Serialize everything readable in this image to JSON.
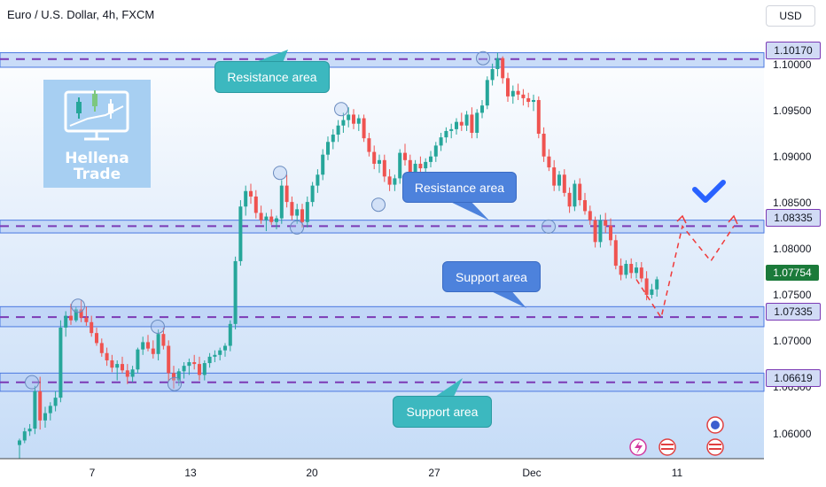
{
  "header": {
    "title": "Euro / U.S. Dollar, 4h, FXCM",
    "currency": "USD"
  },
  "logo": {
    "line1": "Hellena",
    "line2": "Trade"
  },
  "chart_data": {
    "type": "candlestick",
    "y_range": [
      1.0578,
      1.1043
    ],
    "y_ticks": [
      "1.10000",
      "1.09500",
      "1.09000",
      "1.08500",
      "1.08000",
      "1.07500",
      "1.07000",
      "1.06500",
      "1.06000"
    ],
    "x_ticks": [
      "7",
      "13",
      "20",
      "27",
      "Dec",
      "11"
    ],
    "levels": [
      {
        "value": "1.10170",
        "band": [
          1.1008,
          1.1024
        ]
      },
      {
        "value": "1.08335",
        "band": [
          1.0826,
          1.084
        ]
      },
      {
        "value": "1.07335",
        "band": [
          1.0723,
          1.0745
        ]
      },
      {
        "value": "1.06619",
        "band": [
          1.0652,
          1.0672
        ]
      }
    ],
    "current_price": "1.07754",
    "candles": [
      [
        1.0593,
        1.06,
        1.0578,
        1.0598
      ],
      [
        1.0598,
        1.0612,
        1.0595,
        1.0608
      ],
      [
        1.0608,
        1.0616,
        1.0603,
        1.0611
      ],
      [
        1.0611,
        1.0658,
        1.0605,
        1.0652
      ],
      [
        1.0652,
        1.0668,
        1.061,
        1.062
      ],
      [
        1.062,
        1.0635,
        1.0612,
        1.0628
      ],
      [
        1.0628,
        1.064,
        1.062,
        1.0636
      ],
      [
        1.0636,
        1.0652,
        1.063,
        1.0645
      ],
      [
        1.0645,
        1.073,
        1.064,
        1.0722
      ],
      [
        1.0722,
        1.074,
        1.0712,
        1.0735
      ],
      [
        1.0735,
        1.0748,
        1.0725,
        1.073
      ],
      [
        1.073,
        1.0745,
        1.0728,
        1.0742
      ],
      [
        1.0742,
        1.0752,
        1.0728,
        1.0733
      ],
      [
        1.0733,
        1.0745,
        1.0724,
        1.0728
      ],
      [
        1.0728,
        1.0735,
        1.0712,
        1.0716
      ],
      [
        1.0716,
        1.0722,
        1.0702,
        1.0705
      ],
      [
        1.0705,
        1.071,
        1.069,
        1.0694
      ],
      [
        1.0694,
        1.07,
        1.068,
        1.0686
      ],
      [
        1.0686,
        1.0692,
        1.0673,
        1.0678
      ],
      [
        1.0678,
        1.0686,
        1.0664,
        1.0682
      ],
      [
        1.0682,
        1.069,
        1.0672,
        1.0675
      ],
      [
        1.0675,
        1.0682,
        1.066,
        1.0668
      ],
      [
        1.0668,
        1.068,
        1.0662,
        1.0676
      ],
      [
        1.0676,
        1.07,
        1.0672,
        1.0698
      ],
      [
        1.0698,
        1.0712,
        1.0692,
        1.0706
      ],
      [
        1.0706,
        1.0714,
        1.0696,
        1.0699
      ],
      [
        1.0699,
        1.0708,
        1.0688,
        1.0693
      ],
      [
        1.0693,
        1.072,
        1.0686,
        1.0715
      ],
      [
        1.0715,
        1.0722,
        1.0698,
        1.0702
      ],
      [
        1.0702,
        1.0708,
        1.0663,
        1.0672
      ],
      [
        1.0672,
        1.068,
        1.0655,
        1.0664
      ],
      [
        1.0664,
        1.0677,
        1.0658,
        1.0674
      ],
      [
        1.0674,
        1.0684,
        1.0666,
        1.068
      ],
      [
        1.068,
        1.0688,
        1.067,
        1.0684
      ],
      [
        1.0684,
        1.0692,
        1.0676,
        1.0682
      ],
      [
        1.0682,
        1.069,
        1.0664,
        1.067
      ],
      [
        1.067,
        1.0686,
        1.0664,
        1.0683
      ],
      [
        1.0683,
        1.0694,
        1.0678,
        1.069
      ],
      [
        1.069,
        1.0697,
        1.0684,
        1.0692
      ],
      [
        1.0692,
        1.07,
        1.0686,
        1.0697
      ],
      [
        1.0697,
        1.0705,
        1.069,
        1.0702
      ],
      [
        1.0702,
        1.073,
        1.0696,
        1.0726
      ],
      [
        1.0726,
        1.08,
        1.072,
        1.0795
      ],
      [
        1.0795,
        1.0862,
        1.079,
        1.0855
      ],
      [
        1.0855,
        1.0878,
        1.0845,
        1.0872
      ],
      [
        1.0872,
        1.088,
        1.0858,
        1.0866
      ],
      [
        1.0866,
        1.0873,
        1.0842,
        1.0848
      ],
      [
        1.0848,
        1.0856,
        1.0836,
        1.084
      ],
      [
        1.084,
        1.0848,
        1.0828,
        1.0844
      ],
      [
        1.0844,
        1.0852,
        1.0835,
        1.0838
      ],
      [
        1.0838,
        1.0845,
        1.083,
        1.0842
      ],
      [
        1.0842,
        1.0884,
        1.0836,
        1.0878
      ],
      [
        1.0878,
        1.089,
        1.0854,
        1.086
      ],
      [
        1.086,
        1.0866,
        1.084,
        1.0845
      ],
      [
        1.0845,
        1.0858,
        1.0836,
        1.0852
      ],
      [
        1.0852,
        1.0858,
        1.0832,
        1.0838
      ],
      [
        1.0838,
        1.0866,
        1.0832,
        1.086
      ],
      [
        1.086,
        1.0882,
        1.0855,
        1.0878
      ],
      [
        1.0878,
        1.0896,
        1.087,
        1.089
      ],
      [
        1.089,
        1.0918,
        1.0884,
        1.0912
      ],
      [
        1.0912,
        1.0932,
        1.0906,
        1.0926
      ],
      [
        1.0926,
        1.094,
        1.0918,
        1.0934
      ],
      [
        1.0934,
        1.095,
        1.0926,
        1.0944
      ],
      [
        1.0944,
        1.0958,
        1.0936,
        1.095
      ],
      [
        1.095,
        1.0964,
        1.0942,
        1.0956
      ],
      [
        1.0956,
        1.0962,
        1.094,
        1.0946
      ],
      [
        1.0946,
        1.0956,
        1.0938,
        1.0952
      ],
      [
        1.0952,
        1.0956,
        1.0926,
        1.093
      ],
      [
        1.093,
        1.0936,
        1.091,
        1.0915
      ],
      [
        1.0915,
        1.0922,
        1.0896,
        1.0902
      ],
      [
        1.0902,
        1.0912,
        1.0892,
        1.0906
      ],
      [
        1.0906,
        1.0912,
        1.0882,
        1.0888
      ],
      [
        1.0888,
        1.0896,
        1.0872,
        1.0879
      ],
      [
        1.0879,
        1.089,
        1.0872,
        1.0886
      ],
      [
        1.0886,
        1.0918,
        1.088,
        1.0914
      ],
      [
        1.0914,
        1.0924,
        1.09,
        1.0906
      ],
      [
        1.0906,
        1.0912,
        1.0886,
        1.0892
      ],
      [
        1.0892,
        1.0906,
        1.0886,
        1.0902
      ],
      [
        1.0902,
        1.091,
        1.0892,
        1.0897
      ],
      [
        1.0897,
        1.0908,
        1.0892,
        1.0904
      ],
      [
        1.0904,
        1.0916,
        1.0898,
        1.091
      ],
      [
        1.091,
        1.0926,
        1.0904,
        1.0922
      ],
      [
        1.0922,
        1.0936,
        1.0916,
        1.0931
      ],
      [
        1.0931,
        1.0942,
        1.0925,
        1.0938
      ],
      [
        1.0938,
        1.0946,
        1.093,
        1.094
      ],
      [
        1.094,
        1.0952,
        1.0934,
        1.0948
      ],
      [
        1.0948,
        1.0958,
        1.0938,
        1.0944
      ],
      [
        1.0944,
        1.096,
        1.0938,
        1.0956
      ],
      [
        1.0956,
        1.0964,
        1.093,
        1.0936
      ],
      [
        1.0936,
        1.0962,
        1.093,
        1.0958
      ],
      [
        1.0958,
        1.0972,
        1.0952,
        1.0966
      ],
      [
        1.0966,
        1.0998,
        1.0962,
        1.0994
      ],
      [
        1.0994,
        1.1012,
        1.0988,
        1.1006
      ],
      [
        1.1006,
        1.1024,
        1.0998,
        1.1018
      ],
      [
        1.1018,
        1.102,
        1.099,
        1.0996
      ],
      [
        1.0996,
        1.1002,
        1.097,
        1.0976
      ],
      [
        1.0976,
        1.0988,
        1.0968,
        1.0982
      ],
      [
        1.0982,
        1.099,
        1.0972,
        1.0978
      ],
      [
        1.0978,
        1.0984,
        1.0966,
        1.0974
      ],
      [
        1.0974,
        1.098,
        1.0964,
        1.097
      ],
      [
        1.097,
        1.0978,
        1.096,
        1.0972
      ],
      [
        1.0972,
        1.0976,
        1.093,
        1.0935
      ],
      [
        1.0935,
        1.0942,
        1.0904,
        1.091
      ],
      [
        1.091,
        1.0918,
        1.0894,
        1.0898
      ],
      [
        1.0898,
        1.0906,
        1.0872,
        1.0878
      ],
      [
        1.0878,
        1.0894,
        1.0872,
        1.089
      ],
      [
        1.089,
        1.0896,
        1.0866,
        1.087
      ],
      [
        1.087,
        1.0876,
        1.0848,
        1.0855
      ],
      [
        1.0855,
        1.0884,
        1.085,
        1.088
      ],
      [
        1.088,
        1.0886,
        1.0856,
        1.0862
      ],
      [
        1.0862,
        1.087,
        1.0846,
        1.085
      ],
      [
        1.085,
        1.0856,
        1.0835,
        1.084
      ],
      [
        1.084,
        1.0844,
        1.081,
        1.0816
      ],
      [
        1.0816,
        1.0846,
        1.081,
        1.084
      ],
      [
        1.084,
        1.0848,
        1.0826,
        1.0834
      ],
      [
        1.0834,
        1.0842,
        1.0812,
        1.0818
      ],
      [
        1.0818,
        1.0824,
        1.0786,
        1.079
      ],
      [
        1.079,
        1.0798,
        1.0774,
        1.078
      ],
      [
        1.078,
        1.0796,
        1.0776,
        1.0792
      ],
      [
        1.0792,
        1.0798,
        1.0776,
        1.0782
      ],
      [
        1.0782,
        1.0794,
        1.0776,
        1.0788
      ],
      [
        1.0788,
        1.0794,
        1.0772,
        1.0776
      ],
      [
        1.0776,
        1.0784,
        1.0752,
        1.0758
      ],
      [
        1.0758,
        1.077,
        1.0754,
        1.0764
      ],
      [
        1.0764,
        1.0778,
        1.0756,
        1.0775
      ]
    ],
    "projection": [
      [
        1.0775,
        1.0758
      ],
      [
        1.0733,
        1.08335
      ],
      [
        1.0795,
        1.08335
      ]
    ],
    "callouts": [
      {
        "text": "Resistance area",
        "style": "teal"
      },
      {
        "text": "Resistance area",
        "style": "blue"
      },
      {
        "text": "Support area",
        "style": "blue"
      },
      {
        "text": "Support area",
        "style": "teal"
      }
    ],
    "colors": {
      "up": "#26a69a",
      "down": "#ef5350",
      "band_fill": "#b8d0f5",
      "band_border": "#4a78e0",
      "dash": "#7b3ab5",
      "projection": "#f03a3a",
      "check": "#2962ff"
    }
  }
}
